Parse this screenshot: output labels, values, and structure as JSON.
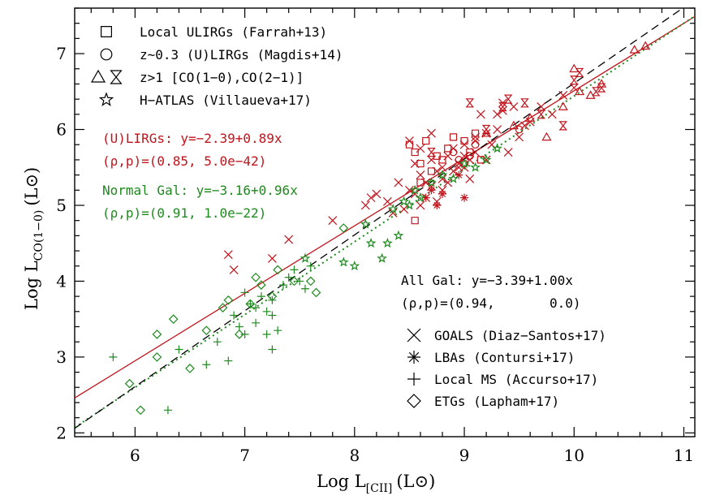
{
  "chart_data": {
    "type": "scatter",
    "xlabel": "Log L",
    "xlabel_sub": "[CII]",
    "xlabel_unit": "(L⊙)",
    "ylabel": "Log L",
    "ylabel_sub": "CO(1−0)",
    "ylabel_unit": "(L⊙)",
    "xlim": [
      5.45,
      11.1
    ],
    "ylim": [
      1.95,
      7.6
    ],
    "xticks": [
      6,
      7,
      8,
      9,
      10,
      11
    ],
    "yticks": [
      2,
      3,
      4,
      5,
      6,
      7
    ],
    "colors": {
      "ulirg": "#c0141c",
      "normal": "#1e8a1e",
      "all": "#000000"
    },
    "legend_top": [
      {
        "symbol": "square",
        "text": "Local ULIRGs (Farrah+13)"
      },
      {
        "symbol": "circle",
        "text": "z~0.3 (U)LIRGs (Magdis+14)"
      },
      {
        "symbol": "triangle-hourglass",
        "text": "z>1 [CO(1−0),CO(2−1)]"
      },
      {
        "symbol": "star",
        "text": "H−ATLAS (Villaueva+17)"
      }
    ],
    "legend_bottom": [
      {
        "symbol": "x",
        "text": "GOALS (Diaz−Santos+17)"
      },
      {
        "symbol": "asterisk",
        "text": "LBAs (Contursi+17)"
      },
      {
        "symbol": "plus",
        "text": "Local MS (Accurso+17)"
      },
      {
        "symbol": "diamond",
        "text": "ETGs (Lapham+17)"
      }
    ],
    "fits": {
      "ulirg": {
        "label": "(U)LIRGs: y=−2.39+0.89x",
        "stats": "(ρ,p)=(0.85, 5.0e−42)",
        "intercept": -2.39,
        "slope": 0.89,
        "style": "solid"
      },
      "normal": {
        "label": "Normal Gal: y=−3.16+0.96x",
        "stats": "(ρ,p)=(0.91, 1.0e−22)",
        "intercept": -3.16,
        "slope": 0.96,
        "style": "dotted"
      },
      "all": {
        "label": "All Gal: y=−3.39+1.00x",
        "stats": "(ρ,p)=(0.94,       0.0)",
        "intercept": -3.39,
        "slope": 1.0,
        "style": "dashed"
      }
    },
    "series": [
      {
        "name": "GOALS (Diaz−Santos+17)",
        "symbol": "x",
        "color": "ulirg",
        "x": [
          8.15,
          8.2,
          8.3,
          8.4,
          8.5,
          8.55,
          8.6,
          8.6,
          8.65,
          8.7,
          8.7,
          8.75,
          8.8,
          8.8,
          8.85,
          8.9,
          8.9,
          8.95,
          9.0,
          9.0,
          9.05,
          9.1,
          9.1,
          9.15,
          9.2,
          9.25,
          9.3,
          9.35,
          9.4,
          9.45,
          9.5,
          9.55,
          9.6,
          9.7,
          9.8,
          9.9,
          10.0,
          8.5,
          8.6,
          8.75,
          8.85,
          8.95,
          9.05,
          9.2,
          8.45,
          8.65,
          9.1,
          9.35,
          7.8,
          6.85,
          6.9,
          7.25,
          7.4,
          8.1,
          8.35,
          8.55,
          8.8,
          9.0,
          9.3,
          8.7
        ],
        "y": [
          5.1,
          5.15,
          5.05,
          5.3,
          5.2,
          5.55,
          5.4,
          5.0,
          5.3,
          5.6,
          5.25,
          5.45,
          5.5,
          5.2,
          5.65,
          5.45,
          5.75,
          5.55,
          5.5,
          5.8,
          5.6,
          5.9,
          5.7,
          6.2,
          5.95,
          5.8,
          6.0,
          6.25,
          5.7,
          6.3,
          5.9,
          6.05,
          6.1,
          6.3,
          6.2,
          6.45,
          6.55,
          5.85,
          5.75,
          5.05,
          5.3,
          5.5,
          5.35,
          5.6,
          4.95,
          5.1,
          5.85,
          6.35,
          4.8,
          4.35,
          4.15,
          4.3,
          4.55,
          5.0,
          4.9,
          5.15,
          5.35,
          5.65,
          6.2,
          5.95
        ]
      },
      {
        "name": "LBAs (Contursi+17)",
        "symbol": "asterisk",
        "color": "ulirg",
        "x": [
          8.65,
          8.7,
          8.75,
          8.8,
          8.95,
          9.0
        ],
        "y": [
          5.1,
          5.2,
          5.0,
          5.15,
          5.4,
          5.1
        ]
      },
      {
        "name": "Local ULIRGs (Farrah+13)",
        "symbol": "square",
        "color": "ulirg",
        "x": [
          8.5,
          8.55,
          8.6,
          8.65,
          8.75,
          8.8,
          8.85,
          8.9,
          9.05,
          9.1,
          9.15,
          8.6,
          8.7,
          9.0,
          8.55
        ],
        "y": [
          5.8,
          5.7,
          5.55,
          5.85,
          5.65,
          5.6,
          5.75,
          5.9,
          5.7,
          5.95,
          5.6,
          5.3,
          5.45,
          5.85,
          4.8
        ]
      },
      {
        "name": "z~0.3 (U)LIRGs (Magdis+14)",
        "symbol": "circle",
        "color": "ulirg",
        "x": [
          8.9,
          8.95,
          9.0,
          9.05,
          9.1,
          9.5
        ],
        "y": [
          5.7,
          5.6,
          5.55,
          5.65,
          5.8,
          6.0
        ]
      },
      {
        "name": "z>1 triangles",
        "symbol": "triangle",
        "color": "ulirg",
        "x": [
          9.2,
          9.45,
          9.6,
          9.75,
          9.9,
          10.0,
          10.05,
          10.15,
          10.25,
          10.55,
          10.65
        ],
        "y": [
          5.95,
          6.05,
          6.15,
          5.9,
          6.3,
          6.8,
          6.5,
          6.45,
          6.6,
          7.05,
          7.1
        ]
      },
      {
        "name": "z>1 hourglass",
        "symbol": "hourglass",
        "color": "ulirg",
        "x": [
          9.05,
          9.2,
          9.4,
          9.55,
          9.7,
          9.9,
          10.0,
          10.05,
          10.2,
          10.25,
          9.35,
          8.7
        ],
        "y": [
          6.35,
          6.0,
          6.4,
          6.35,
          6.2,
          6.05,
          6.65,
          6.75,
          6.5,
          6.55,
          6.3,
          5.7
        ]
      },
      {
        "name": "H−ATLAS (Villaueva+17)",
        "symbol": "star",
        "color": "normal",
        "x": [
          7.55,
          7.9,
          8.0,
          8.15,
          8.25,
          8.3,
          8.4,
          8.45,
          8.5,
          8.6,
          8.7,
          8.8,
          8.9,
          9.0,
          9.1,
          9.2,
          8.1,
          8.35,
          8.55,
          9.3
        ],
        "y": [
          4.3,
          4.25,
          4.2,
          4.5,
          4.3,
          4.5,
          4.6,
          5.05,
          5.0,
          5.1,
          5.3,
          5.4,
          5.35,
          5.55,
          5.5,
          5.6,
          4.75,
          4.95,
          5.2,
          5.75
        ]
      },
      {
        "name": "Local MS (Accurso+17)",
        "symbol": "plus",
        "color": "normal",
        "x": [
          5.8,
          6.3,
          6.4,
          6.65,
          6.75,
          6.85,
          6.9,
          6.95,
          7.0,
          7.05,
          7.1,
          7.15,
          7.2,
          7.2,
          7.25,
          7.25,
          7.3,
          7.1,
          7.0,
          7.35,
          7.4,
          7.5,
          7.55,
          7.6,
          7.45,
          7.25
        ],
        "y": [
          3.0,
          2.3,
          3.1,
          2.9,
          3.2,
          2.95,
          3.55,
          3.4,
          3.3,
          3.7,
          3.45,
          3.8,
          3.6,
          3.3,
          3.75,
          3.1,
          3.35,
          3.65,
          3.85,
          3.95,
          4.05,
          4.0,
          3.9,
          4.2,
          4.15,
          3.55
        ]
      },
      {
        "name": "ETGs (Lapham+17)",
        "symbol": "diamond",
        "color": "normal",
        "x": [
          5.95,
          6.05,
          6.2,
          6.2,
          6.35,
          6.5,
          6.65,
          6.8,
          6.85,
          6.95,
          7.05,
          7.1,
          7.15,
          7.25,
          7.3,
          7.45,
          7.6,
          7.65,
          7.9
        ],
        "y": [
          2.65,
          2.3,
          3.3,
          3.0,
          3.5,
          2.85,
          3.35,
          3.65,
          3.75,
          3.3,
          3.7,
          4.05,
          3.95,
          3.8,
          4.15,
          4.0,
          4.0,
          3.85,
          4.7
        ]
      }
    ]
  }
}
